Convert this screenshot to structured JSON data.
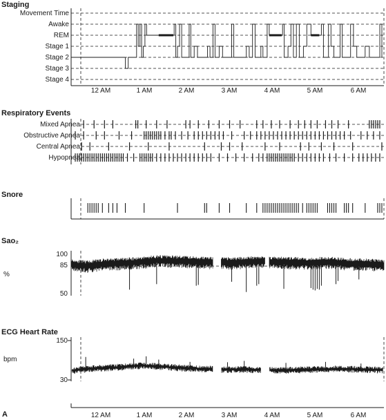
{
  "panel_letter": "A",
  "colors": {
    "ink": "#1a1a1a",
    "background": "#ffffff"
  },
  "chart_data": [
    {
      "type": "line",
      "title": "Staging",
      "categories": [
        "Movement Time",
        "Awake",
        "REM",
        "Stage 1",
        "Stage 2",
        "Stage 3",
        "Stage 4"
      ],
      "x_ticks": [
        "12 AM",
        "1 AM",
        "2 AM",
        "3 AM",
        "4 AM",
        "5 AM",
        "6 AM"
      ],
      "x_range_hours": [
        -0.85,
        6.65
      ],
      "grid": "dashed horizontal at each stage",
      "series": [
        {
          "points": [
            [
              -0.85,
              "Stage 2"
            ],
            [
              0.45,
              "Stage 2"
            ],
            [
              0.45,
              "Stage 3"
            ],
            [
              0.52,
              "Stage 3"
            ],
            [
              0.52,
              "Stage 2"
            ],
            [
              0.72,
              "Stage 2"
            ],
            [
              0.72,
              "Awake"
            ],
            [
              0.76,
              "Stage 1"
            ],
            [
              0.8,
              "Awake"
            ],
            [
              0.84,
              "Stage 2"
            ],
            [
              0.88,
              "Stage 1"
            ],
            [
              0.92,
              "Awake"
            ],
            [
              0.96,
              "REM"
            ],
            [
              1.25,
              "REM"
            ],
            [
              1.6,
              "REM"
            ],
            [
              1.62,
              "Awake"
            ],
            [
              1.66,
              "Stage 2"
            ],
            [
              1.7,
              "Stage 1"
            ],
            [
              1.75,
              "Awake"
            ],
            [
              1.8,
              "Stage 2"
            ],
            [
              1.95,
              "Stage 2"
            ],
            [
              1.98,
              "Awake"
            ],
            [
              2.02,
              "Stage 2"
            ],
            [
              2.1,
              "Stage 1"
            ],
            [
              2.18,
              "Stage 2"
            ],
            [
              2.4,
              "Stage 2"
            ],
            [
              2.42,
              "Stage 1"
            ],
            [
              2.48,
              "Stage 2"
            ],
            [
              2.55,
              "Awake"
            ],
            [
              2.6,
              "Stage 2"
            ],
            [
              2.7,
              "Stage 1"
            ],
            [
              2.78,
              "Stage 2"
            ],
            [
              2.95,
              "Stage 2"
            ],
            [
              3.0,
              "Awake"
            ],
            [
              3.05,
              "Stage 2"
            ],
            [
              3.3,
              "Stage 2"
            ],
            [
              3.35,
              "Stage 1"
            ],
            [
              3.42,
              "Stage 2"
            ],
            [
              3.5,
              "Awake"
            ],
            [
              3.56,
              "Stage 2"
            ],
            [
              3.7,
              "Stage 1"
            ],
            [
              3.75,
              "Stage 2"
            ],
            [
              3.85,
              "Awake"
            ],
            [
              3.9,
              "REM"
            ],
            [
              4.2,
              "REM"
            ],
            [
              4.22,
              "Awake"
            ],
            [
              4.26,
              "Stage 2"
            ],
            [
              4.35,
              "Stage 1"
            ],
            [
              4.42,
              "Awake"
            ],
            [
              4.48,
              "Stage 2"
            ],
            [
              4.55,
              "Awake"
            ],
            [
              4.62,
              "Stage 2"
            ],
            [
              4.72,
              "Stage 1"
            ],
            [
              4.8,
              "Awake"
            ],
            [
              4.9,
              "REM"
            ],
            [
              5.1,
              "REM"
            ],
            [
              5.15,
              "Awake"
            ],
            [
              5.2,
              "Stage 2"
            ],
            [
              5.32,
              "Awake"
            ],
            [
              5.38,
              "Stage 1"
            ],
            [
              5.45,
              "Stage 2"
            ],
            [
              5.6,
              "Awake"
            ],
            [
              5.65,
              "Stage 2"
            ],
            [
              5.8,
              "Stage 2"
            ],
            [
              5.85,
              "Awake"
            ],
            [
              5.92,
              "Stage 1"
            ],
            [
              6.0,
              "Stage 2"
            ],
            [
              6.2,
              "Stage 1"
            ],
            [
              6.3,
              "Stage 2"
            ],
            [
              6.5,
              "Stage 2"
            ],
            [
              6.55,
              "Awake"
            ],
            [
              6.6,
              "Stage 2"
            ]
          ],
          "rem_bold": [
            [
              1.25,
              1.6
            ],
            [
              3.9,
              4.2
            ],
            [
              4.9,
              5.1
            ]
          ]
        }
      ]
    },
    {
      "type": "scatter",
      "title": "Respiratory Events",
      "categories": [
        "Mixed Apnea",
        "Obstructive Apnea",
        "Central Apnea",
        "Hypopnea"
      ],
      "x_range_hours": [
        -0.85,
        6.65
      ],
      "grid": "dashed horizontal",
      "series": [
        {
          "name": "Mixed Apnea",
          "event_times": [
            -0.55,
            -0.3,
            -0.05,
            0.15,
            0.7,
            0.75,
            0.95,
            1.2,
            1.45,
            1.9,
            2.0,
            2.2,
            2.45,
            2.7,
            2.95,
            3.2,
            3.6,
            3.75,
            3.95,
            4.15,
            4.4,
            4.6,
            4.75,
            4.9,
            5.05,
            5.25,
            5.4,
            5.55,
            5.8,
            6.3,
            6.35,
            6.4,
            6.45,
            6.5,
            6.55
          ]
        },
        {
          "name": "Obstructive Apnea",
          "event_times": [
            -0.75,
            -0.55,
            -0.25,
            -0.05,
            0.3,
            0.6,
            0.9,
            0.95,
            1.0,
            1.05,
            1.1,
            1.15,
            1.2,
            1.25,
            1.3,
            1.4,
            1.5,
            1.55,
            1.65,
            1.8,
            1.95,
            2.1,
            2.2,
            2.3,
            2.4,
            2.5,
            2.6,
            2.7,
            2.8,
            3.0,
            3.3,
            3.45,
            3.6,
            3.7,
            3.8,
            3.9,
            4.0,
            4.1,
            4.2,
            4.3,
            4.4,
            4.5,
            4.6,
            4.7,
            4.8,
            4.9,
            5.0,
            5.1,
            5.2,
            5.3,
            5.4,
            5.5,
            5.6,
            5.7,
            5.85,
            6.1,
            6.25,
            6.4,
            6.55
          ]
        },
        {
          "name": "Central Apnea",
          "event_times": [
            -0.6,
            -0.4,
            0.05,
            0.55,
            1.0,
            1.5,
            2.35,
            2.75,
            2.95,
            3.25,
            3.8,
            4.15,
            4.65,
            4.85,
            5.15,
            5.45,
            5.9,
            6.6
          ]
        },
        {
          "name": "Hypopnea",
          "event_times": [
            -0.75,
            -0.7,
            -0.65,
            -0.6,
            -0.55,
            -0.5,
            -0.45,
            -0.4,
            -0.35,
            -0.3,
            -0.25,
            -0.2,
            -0.15,
            -0.1,
            -0.05,
            0.0,
            0.05,
            0.1,
            0.15,
            0.2,
            0.25,
            0.3,
            0.35,
            0.4,
            0.5,
            0.65,
            0.8,
            0.85,
            0.9,
            0.95,
            1.0,
            1.05,
            1.1,
            1.2,
            1.3,
            1.4,
            1.5,
            1.6,
            1.7,
            1.8,
            1.9,
            2.0,
            2.1,
            2.2,
            2.3,
            2.4,
            2.5,
            2.7,
            2.9,
            3.1,
            3.3,
            3.5,
            3.65,
            3.75,
            3.85,
            3.9,
            3.95,
            4.0,
            4.05,
            4.1,
            4.15,
            4.2,
            4.25,
            4.3,
            4.35,
            4.4,
            4.45,
            4.5,
            4.6,
            4.7,
            4.8,
            4.9,
            5.0,
            5.1,
            5.2,
            5.35,
            5.5,
            5.7,
            5.9,
            6.05,
            6.15,
            6.25,
            6.35,
            6.45,
            6.55
          ]
        }
      ]
    },
    {
      "type": "scatter",
      "title": "Snore",
      "x_range_hours": [
        -0.85,
        6.65
      ],
      "series": [
        {
          "event_times": [
            -0.45,
            -0.4,
            -0.35,
            -0.3,
            -0.25,
            -0.2,
            -0.1,
            0.05,
            0.15,
            0.25,
            0.45,
            0.9,
            1.7,
            2.35,
            2.4,
            2.7,
            2.95,
            3.35,
            3.6,
            3.75,
            3.8,
            3.85,
            3.9,
            3.95,
            4.0,
            4.05,
            4.1,
            4.15,
            4.2,
            4.25,
            4.3,
            4.35,
            4.4,
            4.45,
            4.5,
            4.55,
            4.6,
            4.7,
            4.8,
            4.85,
            4.9,
            4.95,
            5.0,
            5.05,
            5.3,
            5.35,
            5.4,
            5.45,
            5.5,
            5.7,
            5.75,
            5.8,
            5.9,
            6.2,
            6.5,
            6.55,
            6.6
          ]
        }
      ]
    },
    {
      "type": "line",
      "title": "Sao₂",
      "ylabel": "%",
      "y_ticks": [
        "100",
        "85",
        "50"
      ],
      "ylim": [
        50,
        100
      ],
      "reference_line": 85,
      "x_range_hours": [
        -0.85,
        6.65
      ],
      "series": [
        {
          "desc_baseline": [
            [
              -0.85,
              87
            ],
            [
              -0.5,
              85
            ],
            [
              0.0,
              88
            ],
            [
              0.6,
              89
            ],
            [
              1.2,
              92
            ],
            [
              1.9,
              91
            ],
            [
              2.4,
              90
            ],
            [
              3.0,
              89
            ],
            [
              3.6,
              91
            ],
            [
              4.2,
              90
            ],
            [
              4.8,
              89
            ],
            [
              5.3,
              90
            ],
            [
              5.9,
              88
            ],
            [
              6.5,
              87
            ],
            [
              6.65,
              86
            ]
          ],
          "desaturations": [
            [
              0.55,
              55
            ],
            [
              1.2,
              62
            ],
            [
              2.15,
              60
            ],
            [
              2.2,
              61
            ],
            [
              3.0,
              65
            ],
            [
              3.35,
              52
            ],
            [
              3.6,
              60
            ],
            [
              3.65,
              62
            ],
            [
              4.25,
              56
            ],
            [
              4.9,
              57
            ],
            [
              4.95,
              55
            ],
            [
              5.0,
              54
            ],
            [
              5.05,
              56
            ],
            [
              5.1,
              55
            ],
            [
              5.15,
              60
            ],
            [
              5.5,
              62
            ],
            [
              5.55,
              66
            ],
            [
              6.05,
              68
            ]
          ],
          "gaps": [
            [
              2.55,
              2.75
            ],
            [
              3.8,
              3.9
            ]
          ]
        }
      ]
    },
    {
      "type": "line",
      "title": "ECG Heart Rate",
      "ylabel": "bpm",
      "y_ticks": [
        "150",
        "30"
      ],
      "ylim": [
        30,
        150
      ],
      "x_range_hours": [
        -0.85,
        6.65
      ],
      "x_ticks": [
        "12 AM",
        "1 AM",
        "2 AM",
        "3 AM",
        "4 AM",
        "5 AM",
        "6 AM"
      ],
      "series": [
        {
          "baseline": [
            [
              -0.85,
              58
            ],
            [
              -0.6,
              62
            ],
            [
              -0.2,
              66
            ],
            [
              0.4,
              70
            ],
            [
              0.9,
              74
            ],
            [
              1.4,
              70
            ],
            [
              1.9,
              66
            ],
            [
              2.3,
              64
            ],
            [
              2.8,
              62
            ],
            [
              3.3,
              62
            ],
            [
              3.8,
              60
            ],
            [
              4.4,
              60
            ],
            [
              5.0,
              62
            ],
            [
              5.6,
              64
            ],
            [
              6.2,
              62
            ],
            [
              6.6,
              60
            ]
          ],
          "spikes": [
            [
              -0.5,
              100
            ],
            [
              0.65,
              95
            ],
            [
              0.95,
              102
            ],
            [
              1.25,
              92
            ],
            [
              2.0,
              85
            ],
            [
              2.9,
              84
            ],
            [
              3.3,
              88
            ],
            [
              4.3,
              82
            ],
            [
              5.25,
              85
            ],
            [
              6.1,
              80
            ]
          ],
          "gaps": [
            [
              2.55,
              2.75
            ],
            [
              3.7,
              3.9
            ]
          ]
        }
      ]
    }
  ]
}
